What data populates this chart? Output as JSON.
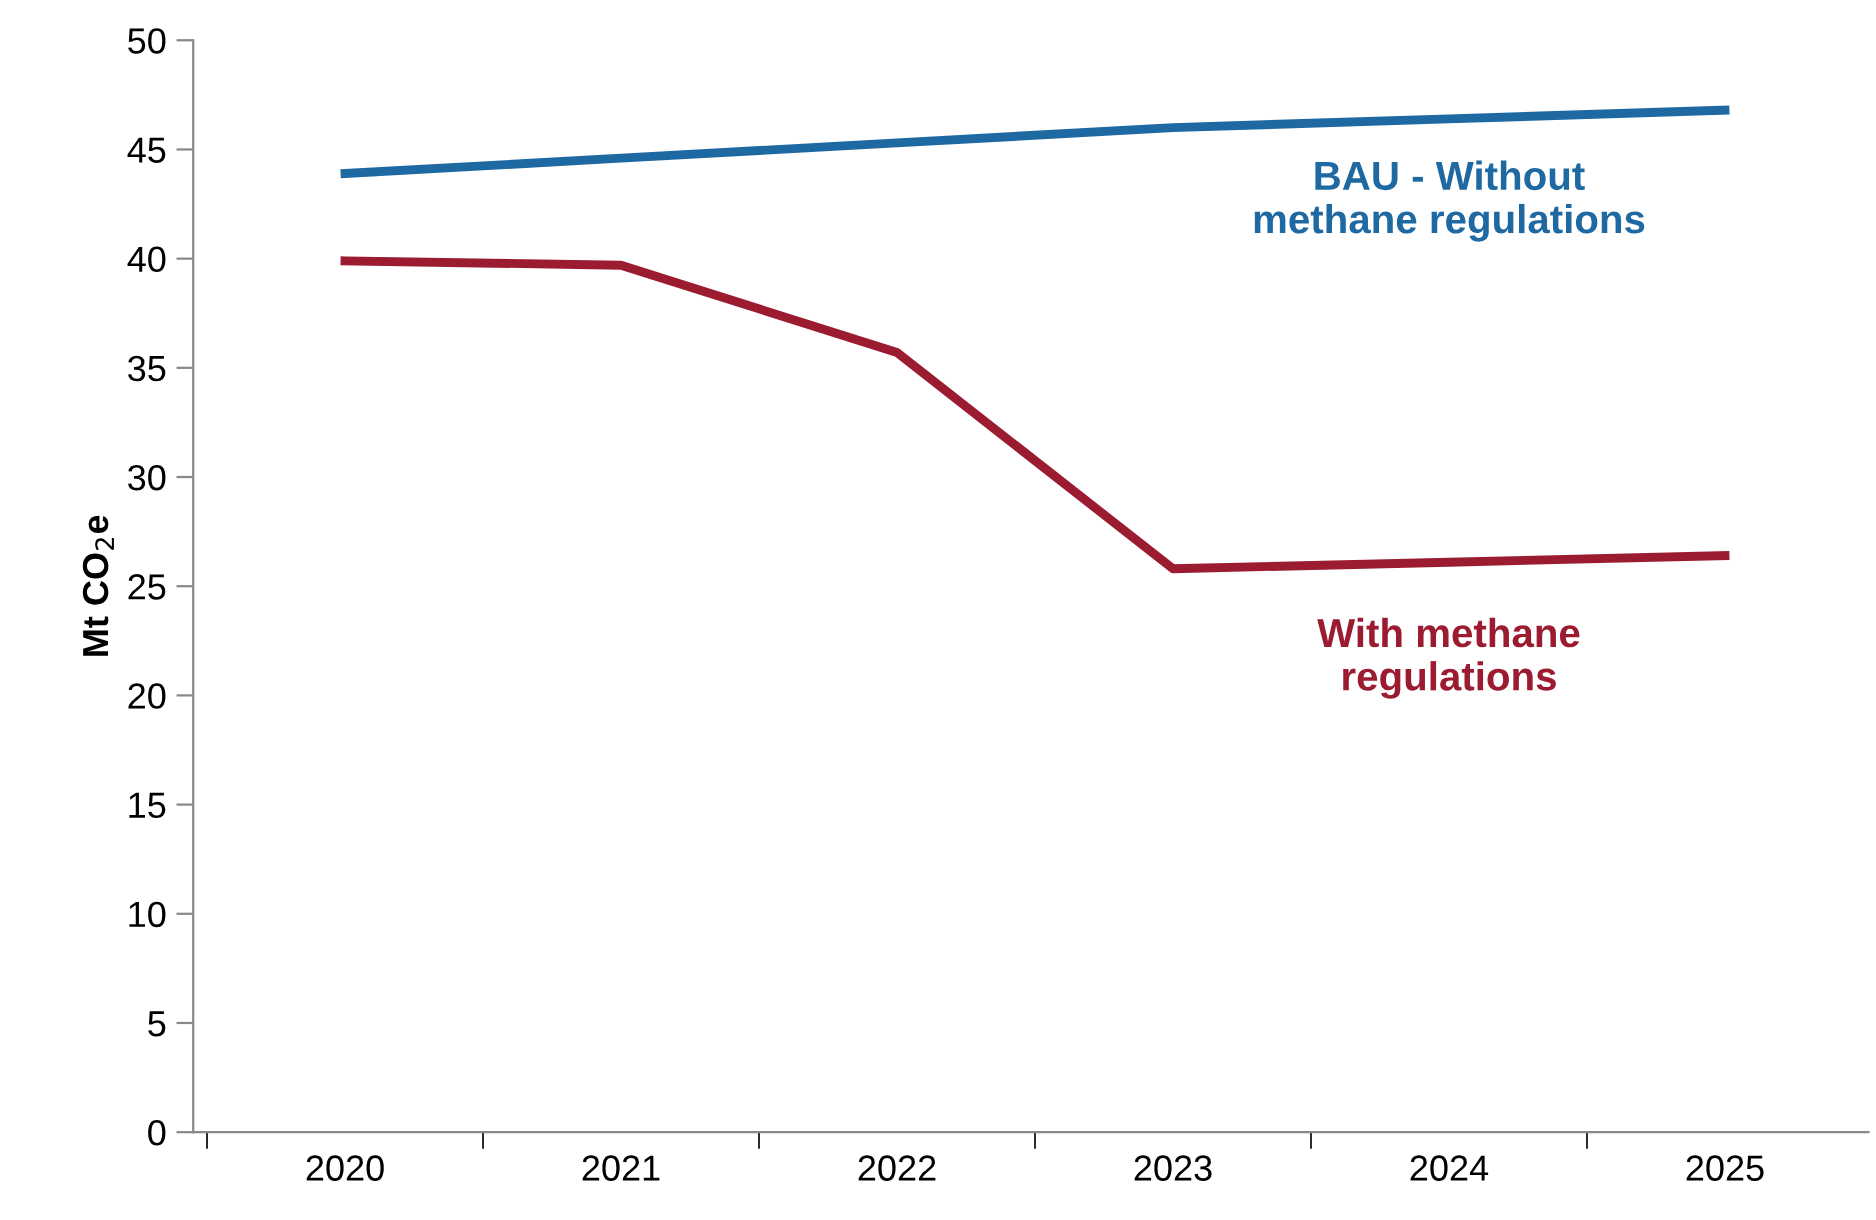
{
  "chart_data": {
    "type": "line",
    "ylabel": "Mt CO$_{2}$e",
    "categories": [
      "2020",
      "2021",
      "2022",
      "2023",
      "2024",
      "2025"
    ],
    "series": [
      {
        "name": "BAU - Without\nmethane regulations",
        "color": "#1f69a3",
        "values": [
          43.9,
          44.6,
          45.3,
          46.0,
          46.4,
          46.8
        ]
      },
      {
        "name": "With methane\nregulations",
        "color": "#9b1b30",
        "values": [
          39.9,
          39.7,
          35.7,
          25.8,
          26.1,
          26.4
        ]
      }
    ],
    "ylim": [
      0,
      50
    ],
    "yticks": [
      0,
      5,
      10,
      15,
      20,
      25,
      30,
      35,
      40,
      45,
      50
    ],
    "grid": false,
    "legend": false,
    "marker": "none",
    "line_style": "solid"
  }
}
